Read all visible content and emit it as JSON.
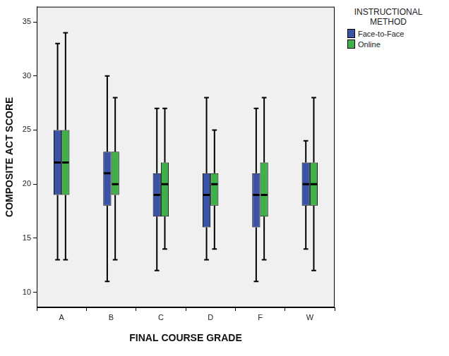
{
  "chart_data": {
    "type": "box",
    "x_label": "FINAL COURSE GRADE",
    "y_label": "COMPOSITE ACT SCORE",
    "legend_title": "INSTRUCTIONAL METHOD",
    "categories": [
      "A",
      "B",
      "C",
      "D",
      "F",
      "W"
    ],
    "series": [
      {
        "name": "Face-to-Face",
        "color": "#3b53a6",
        "min": [
          13,
          11,
          12,
          13,
          11,
          14
        ],
        "q1": [
          19,
          18,
          17,
          16,
          16,
          18
        ],
        "median": [
          22,
          21,
          19,
          19,
          19,
          20
        ],
        "q3": [
          25,
          23,
          21,
          21,
          21,
          22
        ],
        "max": [
          33,
          30,
          27,
          28,
          27,
          24
        ]
      },
      {
        "name": "Online",
        "color": "#3fb04a",
        "min": [
          13,
          13,
          14,
          14,
          13,
          12
        ],
        "q1": [
          19,
          19,
          17,
          18,
          17,
          18
        ],
        "median": [
          22,
          20,
          20,
          20,
          19,
          20
        ],
        "q3": [
          25,
          23,
          22,
          21,
          22,
          22
        ],
        "max": [
          34,
          28,
          27,
          25,
          28,
          28
        ]
      }
    ],
    "ylim": [
      8.6,
      36.4
    ],
    "yticks": [
      10,
      15,
      20,
      25,
      30,
      35
    ],
    "grid": false,
    "legend": "right"
  }
}
